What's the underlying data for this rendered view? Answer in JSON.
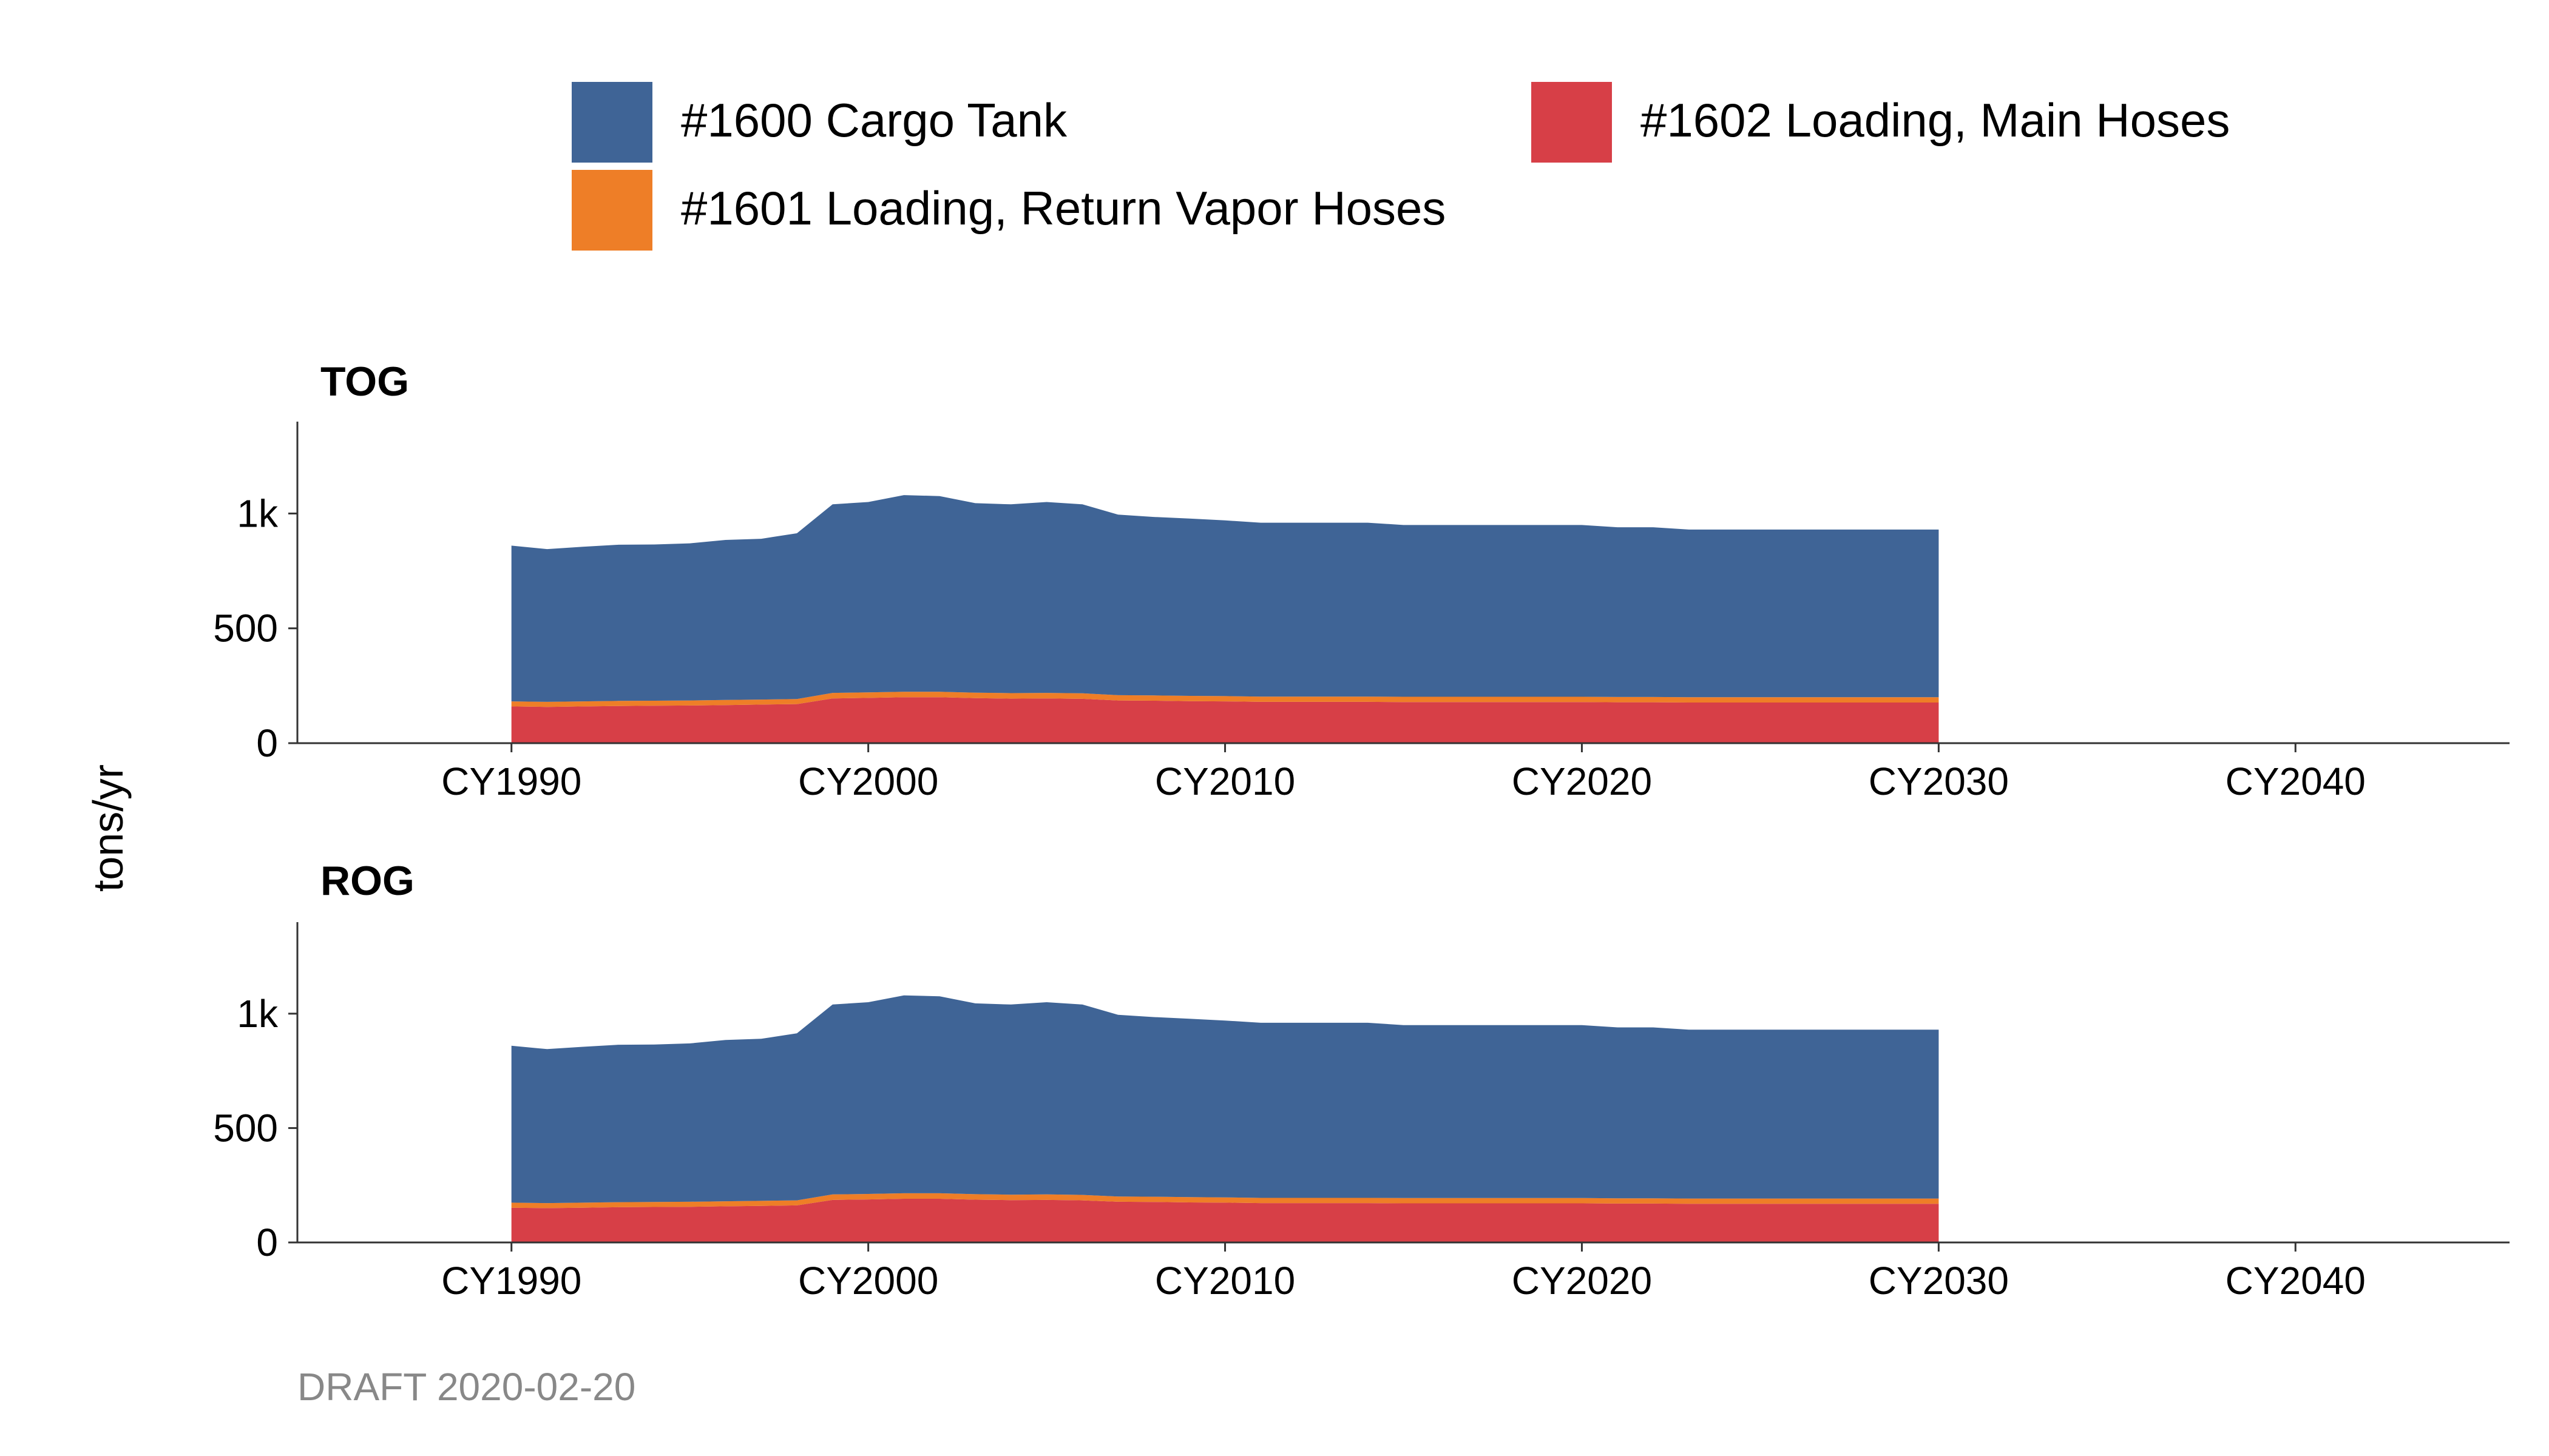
{
  "footer": "DRAFT 2020-02-20",
  "colors": {
    "cargo_tank": "#3F6496",
    "return_vapor": "#EE7E27",
    "main_hoses": "#D73F47",
    "axis": "#333333",
    "footer": "#888888"
  },
  "chart_data": {
    "type": "area",
    "stacked": true,
    "ylabel": "tons/yr",
    "ylim": [
      0,
      1400
    ],
    "yticks": [
      0,
      500,
      1000
    ],
    "ytick_labels": [
      "0",
      "500",
      "1k"
    ],
    "xlim": [
      1984,
      2046
    ],
    "xticks": [
      1990,
      2000,
      2010,
      2020,
      2030,
      2040
    ],
    "xtick_labels": [
      "CY1990",
      "CY2000",
      "CY2010",
      "CY2020",
      "CY2030",
      "CY2040"
    ],
    "grid": false,
    "legend_position": "top",
    "legend": [
      {
        "key": "cargo_tank",
        "label": "#1600 Cargo Tank"
      },
      {
        "key": "main_hoses",
        "label": "#1602 Loading, Main Hoses"
      },
      {
        "key": "return_vapor",
        "label": "#1601 Loading, Return Vapor Hoses"
      }
    ],
    "x": [
      1990,
      1991,
      1992,
      1993,
      1994,
      1995,
      1996,
      1997,
      1998,
      1999,
      2000,
      2001,
      2002,
      2003,
      2004,
      2005,
      2006,
      2007,
      2008,
      2009,
      2010,
      2011,
      2012,
      2013,
      2014,
      2015,
      2016,
      2017,
      2018,
      2019,
      2020,
      2021,
      2022,
      2023,
      2024,
      2025,
      2026,
      2027,
      2028,
      2029,
      2030
    ],
    "panels": [
      {
        "title": "TOG",
        "series": [
          {
            "key": "main_hoses",
            "name": "#1602 Loading, Main Hoses",
            "values": [
              160,
              158,
              160,
              162,
              163,
              164,
              166,
              168,
              170,
              195,
              197,
              200,
              200,
              196,
              194,
              195,
              193,
              186,
              185,
              183,
              182,
              180,
              180,
              180,
              180,
              179,
              179,
              179,
              179,
              179,
              179,
              178,
              178,
              177,
              177,
              177,
              177,
              177,
              177,
              177,
              177
            ]
          },
          {
            "key": "return_vapor",
            "name": "#1601 Loading, Return Vapor Hoses",
            "values": [
              22,
              22,
              22,
              22,
              22,
              22,
              22,
              22,
              22,
              24,
              24,
              24,
              24,
              24,
              24,
              24,
              24,
              23,
              23,
              23,
              23,
              23,
              23,
              23,
              23,
              23,
              23,
              23,
              23,
              23,
              23,
              23,
              23,
              23,
              23,
              23,
              23,
              23,
              23,
              23,
              23
            ]
          },
          {
            "key": "cargo_tank",
            "name": "#1600 Cargo Tank",
            "values": [
              678,
              665,
              673,
              680,
              680,
              684,
              697,
              700,
              722,
              821,
              829,
              856,
              852,
              825,
              822,
              831,
              823,
              786,
              777,
              772,
              765,
              757,
              757,
              757,
              757,
              748,
              748,
              748,
              748,
              748,
              748,
              739,
              739,
              730,
              730,
              730,
              730,
              730,
              730,
              730,
              730
            ]
          }
        ]
      },
      {
        "title": "ROG",
        "series": [
          {
            "key": "main_hoses",
            "name": "#1602 Loading, Main Hoses",
            "values": [
              152,
              150,
              152,
              154,
              155,
              156,
              158,
              160,
              162,
              186,
              188,
              191,
              191,
              187,
              185,
              186,
              184,
              178,
              177,
              175,
              174,
              172,
              172,
              172,
              172,
              171,
              171,
              171,
              171,
              171,
              171,
              170,
              170,
              169,
              169,
              169,
              169,
              169,
              169,
              169,
              169
            ]
          },
          {
            "key": "return_vapor",
            "name": "#1601 Loading, Return Vapor Hoses",
            "values": [
              22,
              22,
              22,
              22,
              22,
              22,
              22,
              22,
              22,
              24,
              24,
              24,
              24,
              24,
              24,
              24,
              24,
              23,
              23,
              23,
              23,
              23,
              23,
              23,
              23,
              23,
              23,
              23,
              23,
              23,
              23,
              23,
              23,
              23,
              23,
              23,
              23,
              23,
              23,
              23,
              23
            ]
          },
          {
            "key": "cargo_tank",
            "name": "#1600 Cargo Tank",
            "values": [
              686,
              673,
              681,
              688,
              688,
              692,
              705,
              708,
              730,
              830,
              838,
              865,
              861,
              834,
              831,
              840,
              832,
              794,
              785,
              780,
              773,
              765,
              765,
              765,
              765,
              756,
              756,
              756,
              756,
              756,
              756,
              747,
              747,
              738,
              738,
              738,
              738,
              738,
              738,
              738,
              738
            ]
          }
        ]
      }
    ]
  }
}
